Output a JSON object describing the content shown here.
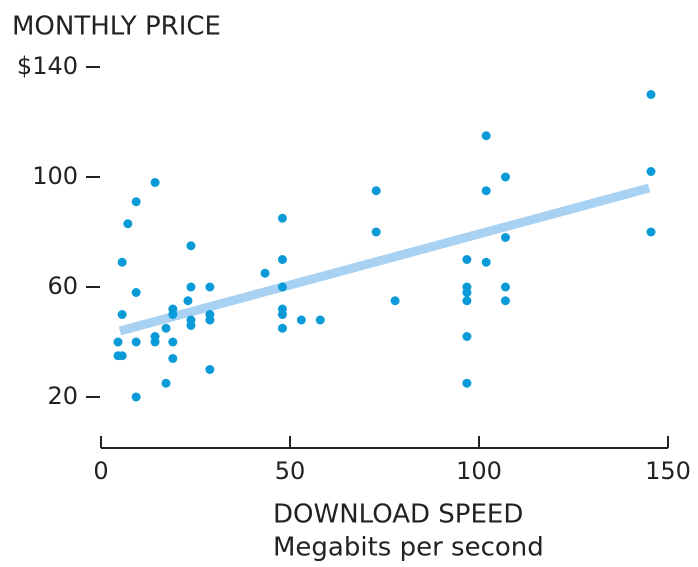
{
  "chart_data": {
    "type": "scatter",
    "title": "MONTHLY PRICE",
    "x_label": "DOWNLOAD SPEED",
    "x_sublabel": "Megabits per second",
    "xlim": [
      0,
      150
    ],
    "xticks": [
      0,
      50,
      100,
      150
    ],
    "ylim": [
      0,
      140
    ],
    "yticks": [
      20,
      60,
      100,
      {
        "value": 140,
        "label": "$140"
      }
    ],
    "series": [
      {
        "color": "#0a9ad8",
        "x": [
          4.5,
          4.5,
          5.6,
          5.6,
          5.6,
          7.1,
          9.3,
          9.3,
          9.3,
          9.3,
          14.3,
          14.3,
          14.3,
          17.2,
          17.2,
          19,
          19,
          19,
          19,
          23,
          23.8,
          23.8,
          23.8,
          23.8,
          28.8,
          28.8,
          28.8,
          28.8,
          43.4,
          48,
          48,
          48,
          48,
          48,
          48,
          53,
          58,
          72.8,
          72.8,
          77.8,
          96.8,
          96.8,
          96.8,
          96.8,
          96.8,
          96.8,
          101.9,
          101.9,
          101.9,
          107,
          107,
          107,
          107,
          145.5,
          145.5,
          145.5
        ],
        "values": [
          40,
          35,
          35,
          69,
          50,
          83,
          91,
          58,
          40,
          20,
          98,
          42,
          40,
          45,
          25,
          52,
          50,
          40,
          34,
          55,
          75,
          60,
          48,
          46,
          60,
          50,
          48,
          30,
          65,
          85,
          70,
          60,
          52,
          50,
          45,
          48,
          48,
          95,
          80,
          55,
          70,
          60,
          58,
          55,
          42,
          25,
          115,
          95,
          69,
          100,
          78,
          60,
          55,
          130,
          102,
          80
        ]
      }
    ],
    "trend": {
      "color": "#a9d2f2",
      "x": [
        5,
        145
      ],
      "values": [
        44,
        96
      ]
    }
  }
}
